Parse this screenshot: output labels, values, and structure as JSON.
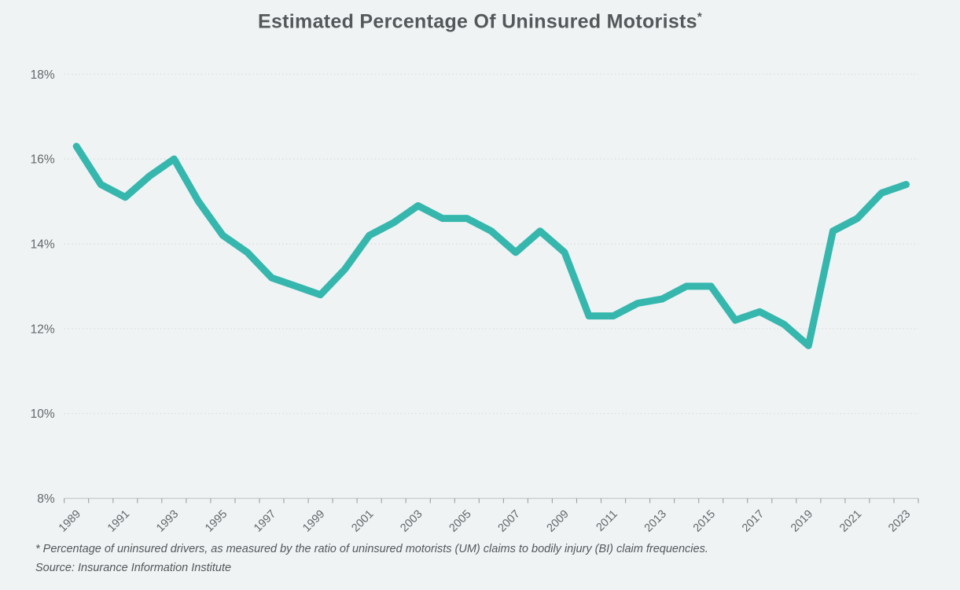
{
  "title": {
    "text": "Estimated Percentage Of Uninsured Motorists",
    "superscript": "*"
  },
  "chart_data": {
    "type": "line",
    "years": [
      1989,
      1990,
      1991,
      1992,
      1993,
      1994,
      1995,
      1996,
      1997,
      1998,
      1999,
      2000,
      2001,
      2002,
      2003,
      2004,
      2005,
      2006,
      2007,
      2008,
      2009,
      2010,
      2011,
      2012,
      2013,
      2014,
      2015,
      2016,
      2017,
      2018,
      2019,
      2020,
      2021,
      2022,
      2023
    ],
    "series": [
      {
        "name": "Estimated percentage of uninsured motorists",
        "color": "#36b7ae",
        "values": [
          16.3,
          15.4,
          15.1,
          15.6,
          16.0,
          15.0,
          14.2,
          13.8,
          13.2,
          13.0,
          12.8,
          13.4,
          14.2,
          14.5,
          14.9,
          14.6,
          14.6,
          14.3,
          13.8,
          14.3,
          13.8,
          12.3,
          12.3,
          12.6,
          12.7,
          13.0,
          13.0,
          12.2,
          12.4,
          12.1,
          11.6,
          14.3,
          14.6,
          15.2,
          15.4
        ]
      }
    ],
    "x_tick_labels": [
      "1989",
      "1991",
      "1993",
      "1995",
      "1997",
      "1999",
      "2001",
      "2003",
      "2005",
      "2007",
      "2009",
      "2011",
      "2013",
      "2015",
      "2017",
      "2019",
      "2021",
      "2023"
    ],
    "y_ticks": [
      {
        "label": "18%",
        "value": 18
      },
      {
        "label": "16%",
        "value": 16
      },
      {
        "label": "14%",
        "value": 14
      },
      {
        "label": "12%",
        "value": 12
      },
      {
        "label": "10%",
        "value": 10
      },
      {
        "label": "8%",
        "value": 8
      }
    ],
    "ylim": [
      8,
      18
    ],
    "xlabel": "",
    "ylabel": "",
    "grid": "dotted-horizontal",
    "legend": "none"
  },
  "colors": {
    "background": "#eff3f4",
    "line": "#36b7ae",
    "title": "#55585a",
    "axis_label": "#63676a",
    "gridline": "#d8dcdc",
    "axis_line": "#c6cbcc",
    "tick": "#9aa0a1"
  },
  "footnotes": {
    "definition": "* Percentage of uninsured drivers, as measured by the ratio of uninsured motorists (UM) claims to bodily injury (BI) claim frequencies.",
    "source": "Source: Insurance Information Institute"
  }
}
